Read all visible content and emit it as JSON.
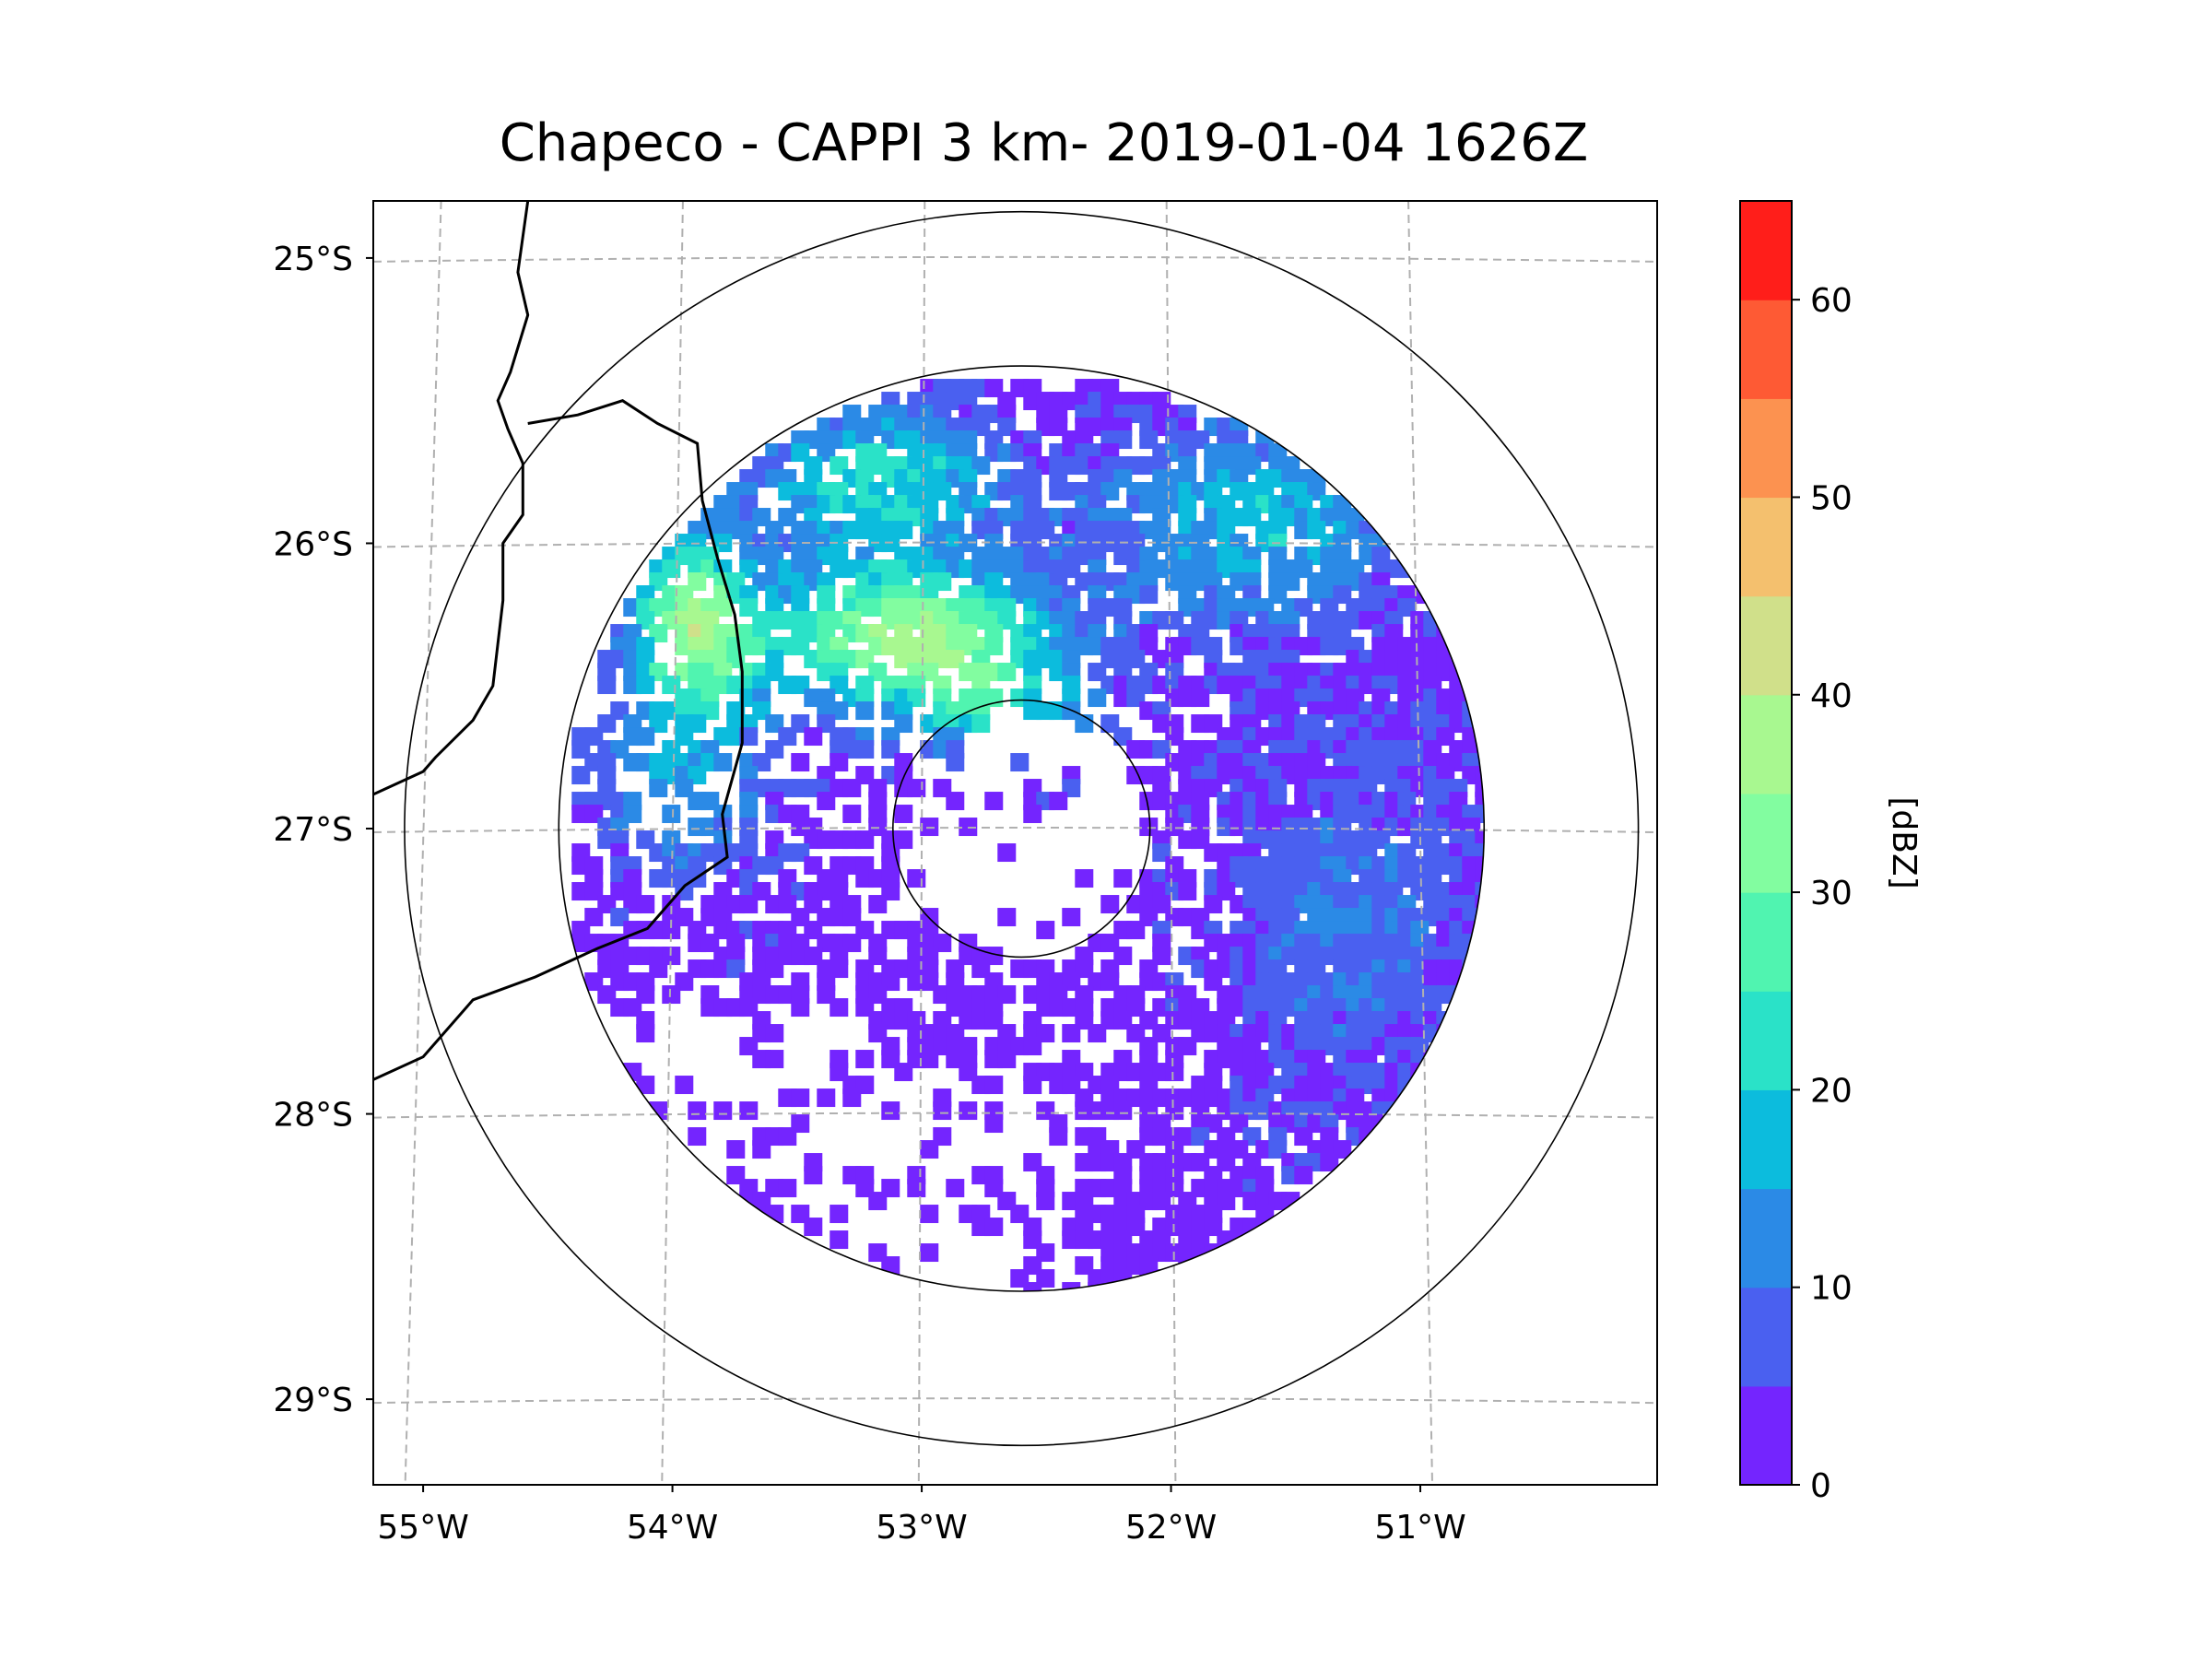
{
  "title": "Chapeco - CAPPI 3 km- 2019-01-04 1626Z",
  "map": {
    "lon_range": [
      -55.2,
      -50.05
    ],
    "lat_range": [
      -29.3,
      -24.8
    ],
    "lon_ticks": [
      {
        "value": -55,
        "label": "55°W"
      },
      {
        "value": -54,
        "label": "54°W"
      },
      {
        "value": -53,
        "label": "53°W"
      },
      {
        "value": -52,
        "label": "52°W"
      },
      {
        "value": -51,
        "label": "51°W"
      }
    ],
    "lat_ticks": [
      {
        "value": -25,
        "label": "25°S"
      },
      {
        "value": -26,
        "label": "26°S"
      },
      {
        "value": -27,
        "label": "27°S"
      },
      {
        "value": -28,
        "label": "28°S"
      },
      {
        "value": -29,
        "label": "29°S"
      }
    ],
    "radar_site": {
      "lon": -52.6,
      "lat": -27.0
    },
    "range_rings_km": [
      50,
      180,
      240
    ]
  },
  "colorbar": {
    "label": "[dBZ]",
    "levels": [
      0,
      5,
      10,
      15,
      20,
      25,
      30,
      35,
      40,
      45,
      50,
      55,
      60,
      65
    ],
    "colors": [
      "#7425fe",
      "#4a60f0",
      "#2b8ae6",
      "#0cbcdd",
      "#2ae2c8",
      "#50f4b0",
      "#82fda0",
      "#a8f890",
      "#d0e08a",
      "#f4c06e",
      "#fc9250",
      "#fe5a34",
      "#ff1e1a"
    ],
    "ticks": [
      {
        "value": 0,
        "label": "0"
      },
      {
        "value": 10,
        "label": "10"
      },
      {
        "value": 20,
        "label": "20"
      },
      {
        "value": 30,
        "label": "30"
      },
      {
        "value": 40,
        "label": "40"
      },
      {
        "value": 50,
        "label": "50"
      },
      {
        "value": 60,
        "label": "60"
      }
    ]
  }
}
